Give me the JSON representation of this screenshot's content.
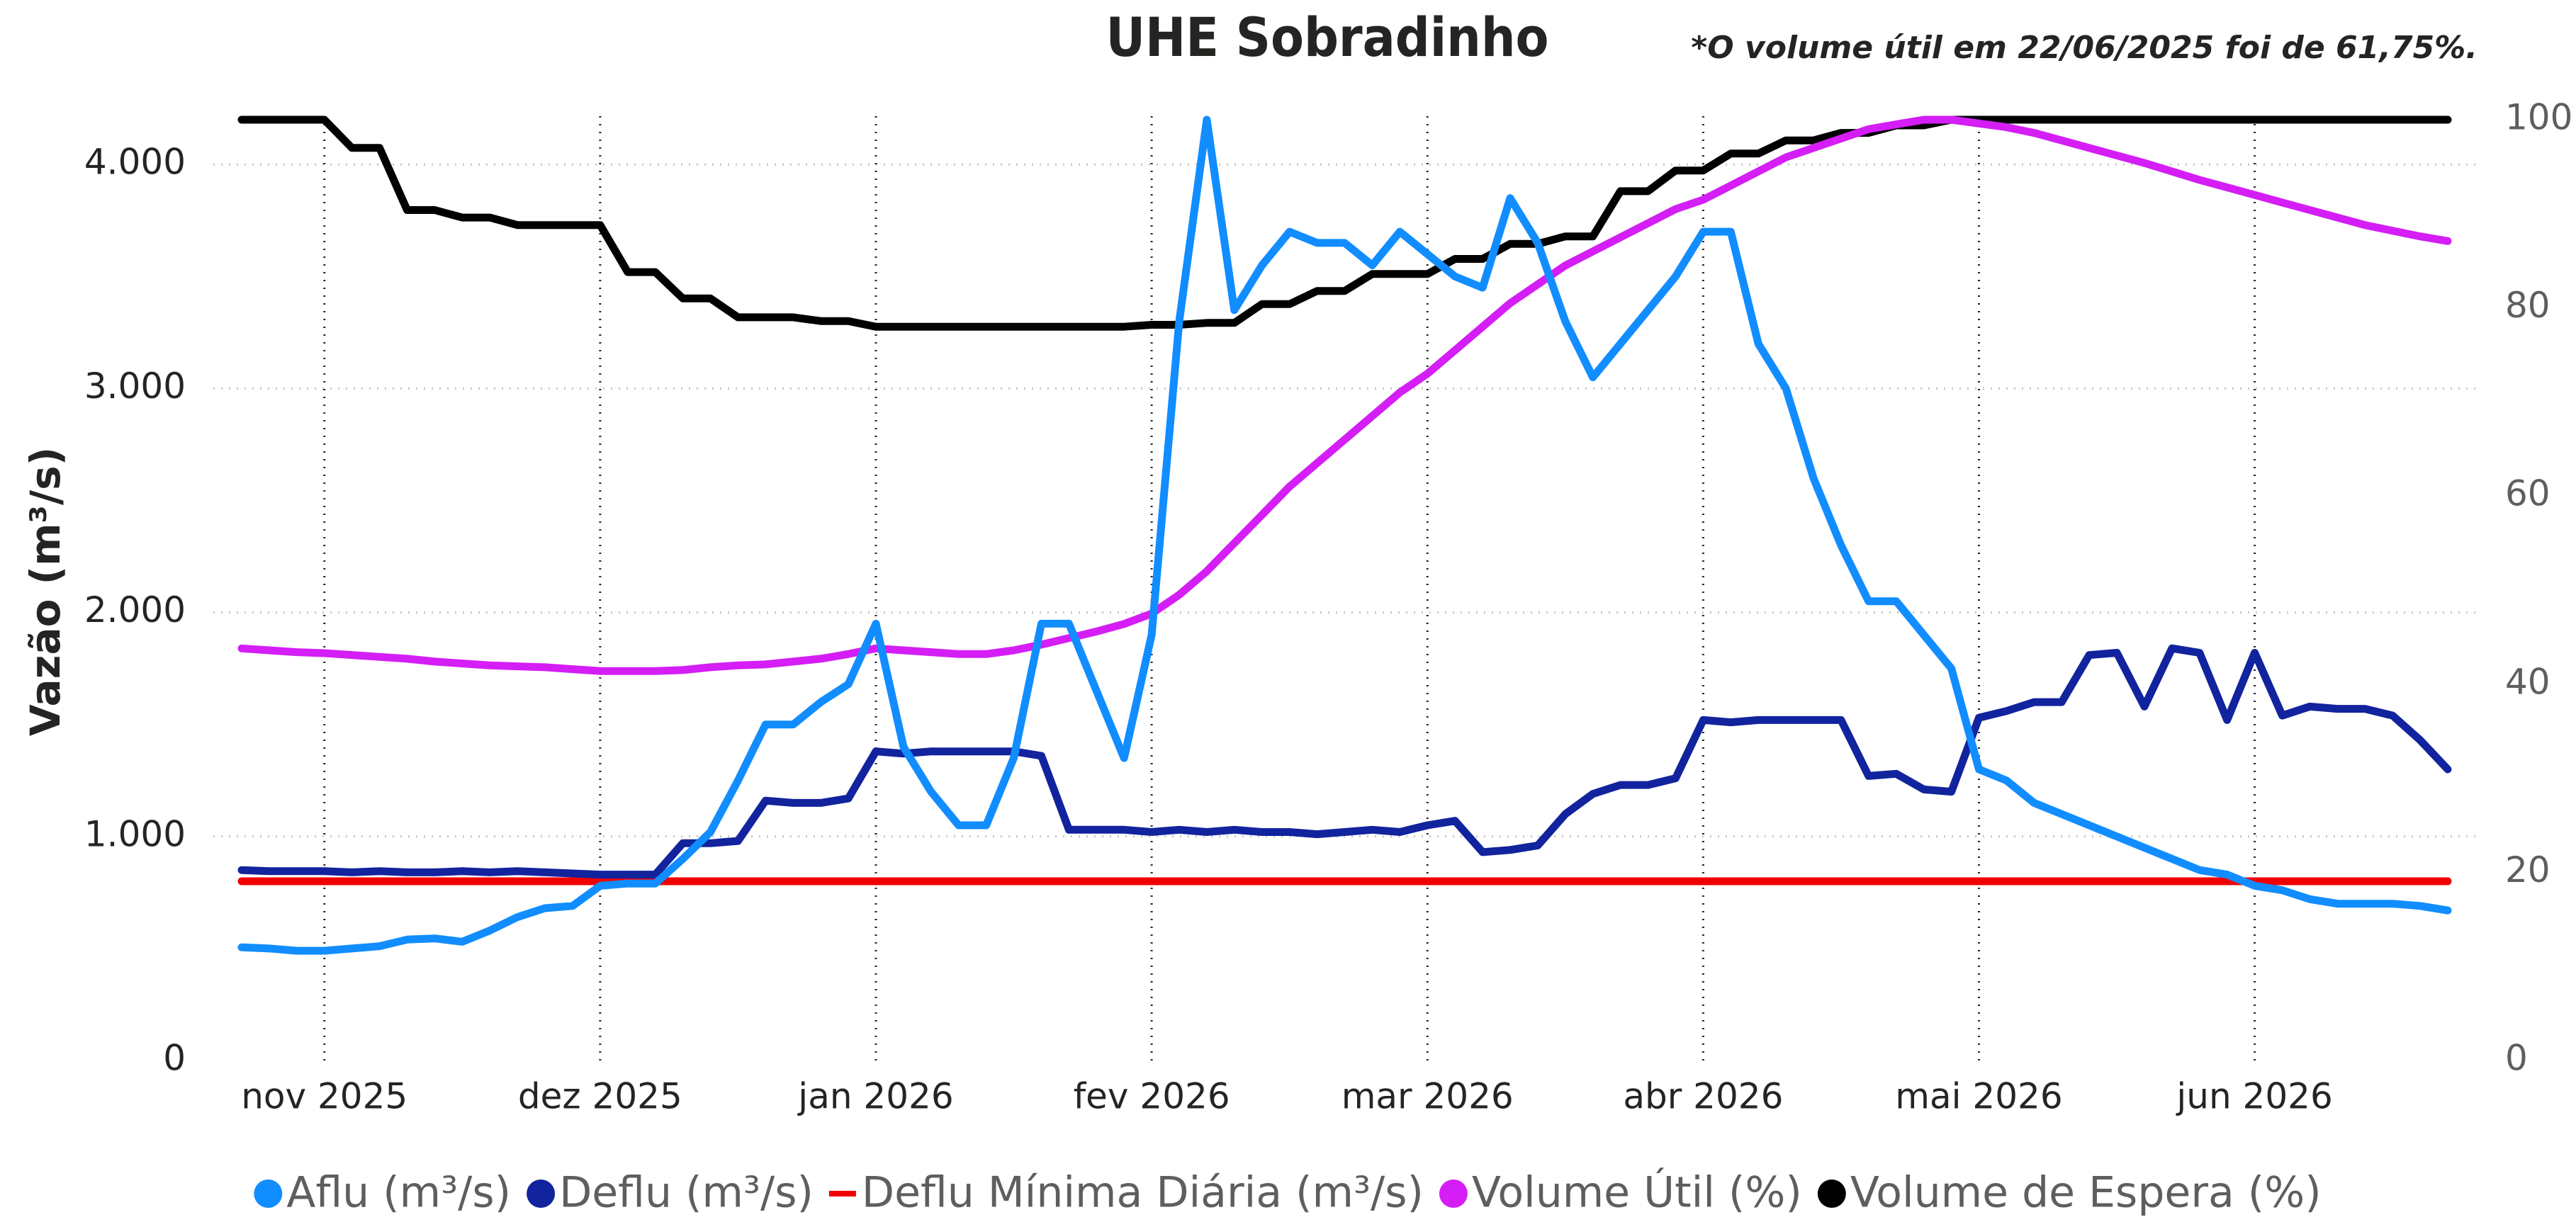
{
  "chart_data": {
    "type": "line",
    "title": "UHE Sobradinho",
    "annotation": "*O volume útil em 22/06/2025 foi de 61,75%.",
    "y_label": "Vazão (m³/s)",
    "categories": [
      null,
      null,
      null,
      "nov 2025",
      null,
      null,
      null,
      null,
      null,
      null,
      null,
      null,
      null,
      "dez 2025",
      null,
      null,
      null,
      null,
      null,
      null,
      null,
      null,
      null,
      "jan 2026",
      null,
      null,
      null,
      null,
      null,
      null,
      null,
      null,
      null,
      "fev 2026",
      null,
      null,
      null,
      null,
      null,
      null,
      null,
      null,
      null,
      "mar 2026",
      null,
      null,
      null,
      null,
      null,
      null,
      null,
      null,
      null,
      "abr 2026",
      null,
      null,
      null,
      null,
      null,
      null,
      null,
      null,
      null,
      "mai 2026",
      null,
      null,
      null,
      null,
      null,
      null,
      null,
      null,
      null,
      "jun 2026",
      null,
      null,
      null,
      null,
      null,
      null,
      null
    ],
    "ylim": [
      0,
      4200
    ],
    "yticks": [
      0,
      {
        "value": 1000,
        "label": "1.000"
      },
      {
        "value": 2000,
        "label": "2.000"
      },
      {
        "value": 3000,
        "label": "3.000"
      },
      {
        "value": 4000,
        "label": "4.000"
      }
    ],
    "y2lim": [
      0,
      100
    ],
    "y2ticks": [
      0,
      20,
      40,
      60,
      80,
      100
    ],
    "grid": true,
    "series": [
      {
        "name": "Aflu (m³/s)",
        "color": "#118dff",
        "marker": "circle",
        "axis": "y",
        "values": [
          505,
          500,
          490,
          490,
          500,
          510,
          540,
          545,
          530,
          580,
          640,
          680,
          690,
          780,
          790,
          790,
          900,
          1020,
          1250,
          1500,
          1500,
          1600,
          1680,
          1950,
          1400,
          1200,
          1050,
          1050,
          1350,
          1950,
          1950,
          1650,
          1350,
          1900,
          3300,
          4200,
          3350,
          3550,
          3700,
          3650,
          3650,
          3550,
          3700,
          3600,
          3500,
          3450,
          3850,
          3650,
          3300,
          3050,
          3200,
          3350,
          3500,
          3700,
          3700,
          3200,
          3000,
          2600,
          2300,
          2050,
          2050,
          1900,
          1750,
          1300,
          1250,
          1150,
          1100,
          1050,
          1000,
          950,
          900,
          850,
          830,
          780,
          760,
          720,
          700,
          700,
          700,
          690,
          670
        ]
      },
      {
        "name": "Deflu (m³/s)",
        "color": "#12239e",
        "marker": "circle",
        "axis": "y",
        "values": [
          850,
          845,
          845,
          845,
          840,
          845,
          840,
          840,
          845,
          840,
          845,
          840,
          835,
          830,
          830,
          830,
          970,
          970,
          980,
          1160,
          1150,
          1150,
          1170,
          1380,
          1370,
          1380,
          1380,
          1380,
          1380,
          1360,
          1030,
          1030,
          1030,
          1020,
          1030,
          1020,
          1030,
          1020,
          1020,
          1010,
          1020,
          1030,
          1020,
          1050,
          1070,
          930,
          940,
          960,
          1100,
          1190,
          1230,
          1230,
          1260,
          1520,
          1510,
          1520,
          1520,
          1520,
          1520,
          1270,
          1280,
          1210,
          1200,
          1530,
          1560,
          1600,
          1600,
          1810,
          1820,
          1580,
          1840,
          1820,
          1520,
          1820,
          1540,
          1580,
          1570,
          1570,
          1540,
          1430,
          1300
        ]
      },
      {
        "name": "Deflu Mínima Diária (m³/s)",
        "color": "#f00000",
        "marker": "line",
        "axis": "y",
        "values": [
          800,
          800,
          800,
          800,
          800,
          800,
          800,
          800,
          800,
          800,
          800,
          800,
          800,
          800,
          800,
          800,
          800,
          800,
          800,
          800,
          800,
          800,
          800,
          800,
          800,
          800,
          800,
          800,
          800,
          800,
          800,
          800,
          800,
          800,
          800,
          800,
          800,
          800,
          800,
          800,
          800,
          800,
          800,
          800,
          800,
          800,
          800,
          800,
          800,
          800,
          800,
          800,
          800,
          800,
          800,
          800,
          800,
          800,
          800,
          800,
          800,
          800,
          800,
          800,
          800,
          800,
          800,
          800,
          800,
          800,
          800,
          800,
          800,
          800,
          800,
          800,
          800,
          800,
          800,
          800,
          800
        ]
      },
      {
        "name": "Volume Útil (%)",
        "color": "#d41ef5",
        "marker": "circle",
        "axis": "y2",
        "values": [
          43.8,
          43.6,
          43.4,
          43.3,
          43.1,
          42.9,
          42.7,
          42.4,
          42.2,
          42.0,
          41.9,
          41.8,
          41.6,
          41.4,
          41.4,
          41.4,
          41.5,
          41.8,
          42.0,
          42.1,
          42.4,
          42.7,
          43.2,
          43.8,
          43.6,
          43.4,
          43.2,
          43.2,
          43.6,
          44.2,
          44.9,
          45.6,
          46.4,
          47.5,
          49.5,
          52.0,
          55.0,
          58.0,
          61.0,
          63.5,
          66.0,
          68.5,
          71.0,
          73.0,
          75.5,
          78.0,
          80.5,
          82.5,
          84.5,
          86.0,
          87.5,
          89.0,
          90.5,
          91.5,
          93.0,
          94.5,
          96.0,
          97.0,
          98.0,
          99.0,
          99.5,
          100,
          100,
          99.6,
          99.2,
          98.6,
          97.8,
          97.0,
          96.2,
          95.4,
          94.5,
          93.6,
          92.8,
          92.0,
          91.2,
          90.4,
          89.6,
          88.8,
          88.2,
          87.6,
          87.1
        ]
      },
      {
        "name": "Volume de Espera (%)",
        "color": "#000000",
        "marker": "circle",
        "axis": "y2",
        "values": [
          100,
          100,
          100,
          100,
          97,
          97,
          90.4,
          90.4,
          89.6,
          89.6,
          88.8,
          88.8,
          88.8,
          88.8,
          83.8,
          83.8,
          81,
          81,
          79,
          79,
          79,
          78.6,
          78.6,
          78,
          78,
          78,
          78,
          78,
          78,
          78,
          78,
          78,
          78,
          78.2,
          78.2,
          78.4,
          78.4,
          80.4,
          80.4,
          81.8,
          81.8,
          83.6,
          83.6,
          83.6,
          85.2,
          85.2,
          86.8,
          86.8,
          87.6,
          87.6,
          92.4,
          92.4,
          94.6,
          94.6,
          96.4,
          96.4,
          97.8,
          97.8,
          98.6,
          98.6,
          99.4,
          99.4,
          100,
          100,
          100,
          100,
          100,
          100,
          100,
          100,
          100,
          100,
          100,
          100,
          100,
          100,
          100,
          100,
          100,
          100,
          100
        ]
      }
    ]
  }
}
